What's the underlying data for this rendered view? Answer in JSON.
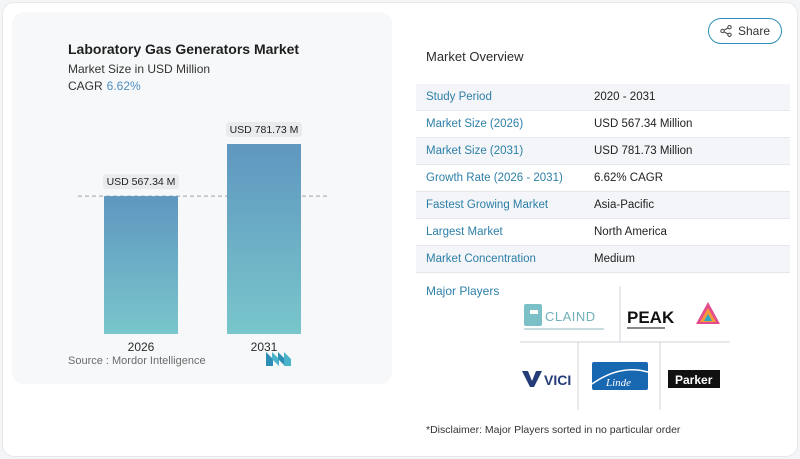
{
  "chart": {
    "title": "Laboratory Gas Generators Market",
    "subtitle": "Market Size in USD Million",
    "cagr_label": "CAGR",
    "cagr_value": "6.62%",
    "source": "Source :  Mordor Intelligence"
  },
  "chart_data": {
    "type": "bar",
    "categories": [
      "2026",
      "2031"
    ],
    "values": [
      567.34,
      781.73
    ],
    "data_labels": [
      "USD 567.34 M",
      "USD 781.73 M"
    ],
    "title": "Laboratory Gas Generators Market",
    "subtitle": "Market Size in USD Million",
    "xlabel": "",
    "ylabel": "",
    "ylim": [
      0,
      781.73
    ],
    "grid": false,
    "reference_line_at": 567.34
  },
  "share": {
    "label": "Share",
    "icon": "share-icon"
  },
  "overview": {
    "title": "Market Overview",
    "rows": [
      {
        "key": "Study Period",
        "value": "2020 - 2031"
      },
      {
        "key": "Market Size (2026)",
        "value": "USD 567.34 Million"
      },
      {
        "key": "Market Size (2031)",
        "value": "USD 781.73 Million"
      },
      {
        "key": "Growth Rate (2026 - 2031)",
        "value": "6.62% CAGR"
      },
      {
        "key": "Fastest Growing Market",
        "value": "Asia-Pacific"
      },
      {
        "key": "Largest Market",
        "value": "North America"
      },
      {
        "key": "Market Concentration",
        "value": "Medium"
      }
    ]
  },
  "players": {
    "title": "Major Players",
    "logos": [
      "CLAIND",
      "PEAK",
      "VICI",
      "Linde",
      "Parker"
    ]
  },
  "disclaimer": "*Disclaimer: Major Players sorted in no particular order",
  "colors": {
    "bar_top": "#5f97c0",
    "bar_bottom": "#79c6cb",
    "accent": "#2d7fa8",
    "cagr": "#4f8ec0"
  }
}
